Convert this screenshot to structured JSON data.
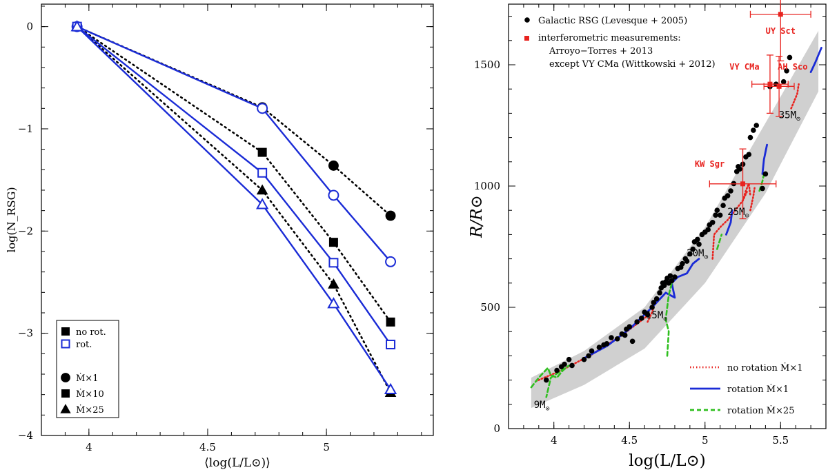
{
  "chart_data": [
    {
      "type": "line",
      "xlabel": "⟨log(L/L⊙)⟩",
      "ylabel": "log(N_RSG)",
      "xlim": [
        3.8,
        5.45
      ],
      "ylim": [
        -4,
        0.22
      ],
      "xticks": [
        "4",
        "4.5",
        "5"
      ],
      "yticks": [
        "0",
        "−1",
        "−2",
        "−3",
        "−4"
      ],
      "series": [
        {
          "group": "no rot.",
          "mdot": "Ṁ×1",
          "marker": "circle",
          "x": [
            3.95,
            4.73,
            5.03,
            5.27
          ],
          "y": [
            0,
            -0.79,
            -1.36,
            -1.85
          ]
        },
        {
          "group": "no rot.",
          "mdot": "Ṁ×10",
          "marker": "square",
          "x": [
            3.95,
            4.73,
            5.03,
            5.27
          ],
          "y": [
            0,
            -1.23,
            -2.11,
            -2.89
          ]
        },
        {
          "group": "no rot.",
          "mdot": "Ṁ×25",
          "marker": "triangle",
          "x": [
            3.95,
            4.73,
            5.03,
            5.27
          ],
          "y": [
            0,
            -1.6,
            -2.52,
            -3.58
          ]
        },
        {
          "group": "rot.",
          "mdot": "Ṁ×1",
          "marker": "circle",
          "x": [
            3.95,
            4.73,
            5.03,
            5.27
          ],
          "y": [
            0,
            -0.8,
            -1.65,
            -2.3
          ]
        },
        {
          "group": "rot.",
          "mdot": "Ṁ×10",
          "marker": "square",
          "x": [
            3.95,
            4.73,
            5.03,
            5.27
          ],
          "y": [
            0,
            -1.43,
            -2.31,
            -3.11
          ]
        },
        {
          "group": "rot.",
          "mdot": "Ṁ×25",
          "marker": "triangle",
          "x": [
            3.95,
            4.73,
            5.03,
            5.27
          ],
          "y": [
            0,
            -1.74,
            -2.71,
            -3.55
          ]
        }
      ],
      "legend": {
        "placement": "bottom-left",
        "items": [
          {
            "label": "no rot.",
            "marker": "square",
            "filled": true
          },
          {
            "label": "rot.",
            "marker": "square",
            "filled": false
          },
          {
            "label": "Ṁ×1",
            "marker": "circle",
            "filled": true
          },
          {
            "label": "Ṁ×10",
            "marker": "square",
            "filled": true
          },
          {
            "label": "Ṁ×25",
            "marker": "triangle",
            "filled": true
          }
        ]
      },
      "colors": {
        "no_rot": "#000000",
        "rot": "#1a2bd6"
      }
    },
    {
      "type": "scatter",
      "xlabel": "log(L/L⊙)",
      "ylabel": "R/R⊙",
      "xlim": [
        3.7,
        5.8
      ],
      "ylim": [
        0,
        1750
      ],
      "xticks": [
        "4",
        "4.5",
        "5",
        "5.5"
      ],
      "yticks": [
        "0",
        "500",
        "1000",
        "1500"
      ],
      "legend_top": [
        {
          "label": "Galactic RSG (Levesque + 2005)",
          "marker": "circle",
          "color": "#000000"
        },
        {
          "label": "interferometric measurements:",
          "marker": "square",
          "color": "#e8231f"
        },
        {
          "label": "Arroyo−Torres + 2013"
        },
        {
          "label": "except VY CMa (Wittkowski + 2012)"
        }
      ],
      "legend_bottom": [
        {
          "label": "no rotation Ṁ×1",
          "style": "dotted",
          "color": "#e8231f"
        },
        {
          "label": "rotation Ṁ×1",
          "style": "solid",
          "color": "#1a2bd6"
        },
        {
          "label": "rotation Ṁ×25",
          "style": "dashed",
          "color": "#2fbf1f"
        }
      ],
      "galactic_rsg": [
        [
          3.95,
          200
        ],
        [
          4.02,
          240
        ],
        [
          4.05,
          255
        ],
        [
          4.07,
          265
        ],
        [
          4.1,
          285
        ],
        [
          4.12,
          260
        ],
        [
          4.2,
          285
        ],
        [
          4.23,
          300
        ],
        [
          4.25,
          320
        ],
        [
          4.3,
          335
        ],
        [
          4.33,
          345
        ],
        [
          4.35,
          350
        ],
        [
          4.38,
          375
        ],
        [
          4.42,
          370
        ],
        [
          4.45,
          390
        ],
        [
          4.47,
          385
        ],
        [
          4.48,
          410
        ],
        [
          4.5,
          420
        ],
        [
          4.52,
          360
        ],
        [
          4.55,
          440
        ],
        [
          4.58,
          455
        ],
        [
          4.6,
          480
        ],
        [
          4.62,
          470
        ],
        [
          4.65,
          500
        ],
        [
          4.66,
          520
        ],
        [
          4.68,
          535
        ],
        [
          4.7,
          560
        ],
        [
          4.71,
          580
        ],
        [
          4.72,
          600
        ],
        [
          4.73,
          590
        ],
        [
          4.74,
          605
        ],
        [
          4.75,
          620
        ],
        [
          4.76,
          600
        ],
        [
          4.77,
          630
        ],
        [
          4.78,
          610
        ],
        [
          4.8,
          625
        ],
        [
          4.82,
          660
        ],
        [
          4.84,
          665
        ],
        [
          4.85,
          680
        ],
        [
          4.87,
          700
        ],
        [
          4.88,
          690
        ],
        [
          4.9,
          720
        ],
        [
          4.92,
          740
        ],
        [
          4.93,
          770
        ],
        [
          4.95,
          780
        ],
        [
          4.96,
          760
        ],
        [
          4.98,
          800
        ],
        [
          5.0,
          810
        ],
        [
          5.02,
          820
        ],
        [
          5.03,
          840
        ],
        [
          5.05,
          850
        ],
        [
          5.07,
          880
        ],
        [
          5.08,
          900
        ],
        [
          5.1,
          880
        ],
        [
          5.12,
          920
        ],
        [
          5.13,
          950
        ],
        [
          5.15,
          960
        ],
        [
          5.17,
          980
        ],
        [
          5.19,
          1010
        ],
        [
          5.21,
          1060
        ],
        [
          5.22,
          1080
        ],
        [
          5.23,
          1070
        ],
        [
          5.25,
          1090
        ],
        [
          5.27,
          1120
        ],
        [
          5.29,
          1130
        ],
        [
          5.3,
          1200
        ],
        [
          5.32,
          1230
        ],
        [
          5.34,
          1250
        ],
        [
          5.38,
          990
        ],
        [
          5.4,
          1050
        ],
        [
          5.43,
          1410
        ],
        [
          5.47,
          1420
        ],
        [
          5.52,
          1430
        ],
        [
          5.54,
          1475
        ],
        [
          5.56,
          1530
        ]
      ],
      "interferometric": [
        {
          "name": "UY Sct",
          "x": 5.5,
          "y": 1708,
          "xerr": [
            0.2,
            0.2
          ],
          "yerr": [
            192,
            192
          ]
        },
        {
          "name": "VY CMa",
          "x": 5.43,
          "y": 1420,
          "xerr": [
            0.12,
            0.12
          ],
          "yerr": [
            120,
            120
          ]
        },
        {
          "name": "AH Sco",
          "x": 5.49,
          "y": 1411,
          "xerr": [
            0.1,
            0.1
          ],
          "yerr": [
            124,
            124
          ]
        },
        {
          "name": "KW Sgr",
          "x": 5.25,
          "y": 1009,
          "xerr": [
            0.22,
            0.22
          ],
          "yerr": [
            144,
            144
          ]
        }
      ],
      "mass_labels": [
        {
          "text": "9M⊙",
          "x": 3.92,
          "y": 85
        },
        {
          "text": "15M⊙",
          "x": 4.68,
          "y": 455
        },
        {
          "text": "20M⊙",
          "x": 4.95,
          "y": 710
        },
        {
          "text": "25M⊙",
          "x": 5.22,
          "y": 880
        },
        {
          "text": "35M⊙",
          "x": 5.56,
          "y": 1280
        }
      ],
      "band": {
        "upper": [
          [
            3.85,
            210
          ],
          [
            4.2,
            320
          ],
          [
            4.6,
            500
          ],
          [
            5.0,
            830
          ],
          [
            5.4,
            1260
          ],
          [
            5.75,
            1640
          ]
        ],
        "lower": [
          [
            3.85,
            85
          ],
          [
            4.2,
            180
          ],
          [
            4.6,
            330
          ],
          [
            5.0,
            600
          ],
          [
            5.4,
            970
          ],
          [
            5.75,
            1390
          ]
        ]
      },
      "tracks_dotted": [
        [
          [
            3.88,
            195
          ],
          [
            4.05,
            240
          ],
          [
            4.25,
            305
          ],
          [
            4.45,
            385
          ],
          [
            4.62,
            465
          ]
        ],
        [
          [
            4.62,
            440
          ],
          [
            4.65,
            480
          ],
          [
            4.66,
            500
          ]
        ],
        [
          [
            5.05,
            700
          ],
          [
            5.06,
            800
          ],
          [
            5.1,
            830
          ],
          [
            5.15,
            860
          ],
          [
            5.2,
            900
          ],
          [
            5.25,
            940
          ],
          [
            5.28,
            980
          ]
        ],
        [
          [
            5.25,
            940
          ],
          [
            5.27,
            980
          ],
          [
            5.29,
            1010
          ],
          [
            5.3,
            960
          ]
        ],
        [
          [
            5.3,
            900
          ],
          [
            5.31,
            930
          ],
          [
            5.32,
            960
          ],
          [
            5.33,
            1000
          ]
        ],
        [
          [
            5.57,
            1320
          ],
          [
            5.59,
            1350
          ],
          [
            5.61,
            1380
          ],
          [
            5.62,
            1420
          ]
        ]
      ],
      "tracks_solid": [
        [
          [
            4.2,
            290
          ],
          [
            4.35,
            340
          ],
          [
            4.5,
            410
          ],
          [
            4.65,
            500
          ],
          [
            4.74,
            560
          ]
        ],
        [
          [
            4.74,
            560
          ],
          [
            4.8,
            540
          ],
          [
            4.78,
            600
          ],
          [
            4.82,
            625
          ],
          [
            4.88,
            640
          ],
          [
            4.92,
            680
          ],
          [
            4.96,
            700
          ]
        ],
        [
          [
            5.14,
            800
          ],
          [
            5.17,
            850
          ],
          [
            5.18,
            900
          ]
        ],
        [
          [
            5.38,
            1050
          ],
          [
            5.39,
            1110
          ],
          [
            5.41,
            1170
          ]
        ],
        [
          [
            5.7,
            1470
          ],
          [
            5.73,
            1510
          ],
          [
            5.77,
            1570
          ]
        ]
      ],
      "tracks_dashed": [
        [
          [
            3.85,
            170
          ],
          [
            3.9,
            210
          ],
          [
            3.93,
            230
          ],
          [
            3.96,
            250
          ],
          [
            3.98,
            220
          ],
          [
            4.02,
            210
          ],
          [
            4.06,
            240
          ],
          [
            4.1,
            260
          ],
          [
            3.98,
            210
          ],
          [
            3.95,
            130
          ]
        ],
        [
          [
            4.75,
            300
          ],
          [
            4.76,
            400
          ],
          [
            4.74,
            450
          ],
          [
            4.76,
            550
          ],
          [
            4.78,
            600
          ]
        ],
        [
          [
            5.08,
            740
          ],
          [
            5.1,
            780
          ],
          [
            5.11,
            800
          ]
        ],
        [
          [
            5.36,
            980
          ],
          [
            5.38,
            1020
          ],
          [
            5.39,
            1050
          ]
        ]
      ]
    }
  ]
}
